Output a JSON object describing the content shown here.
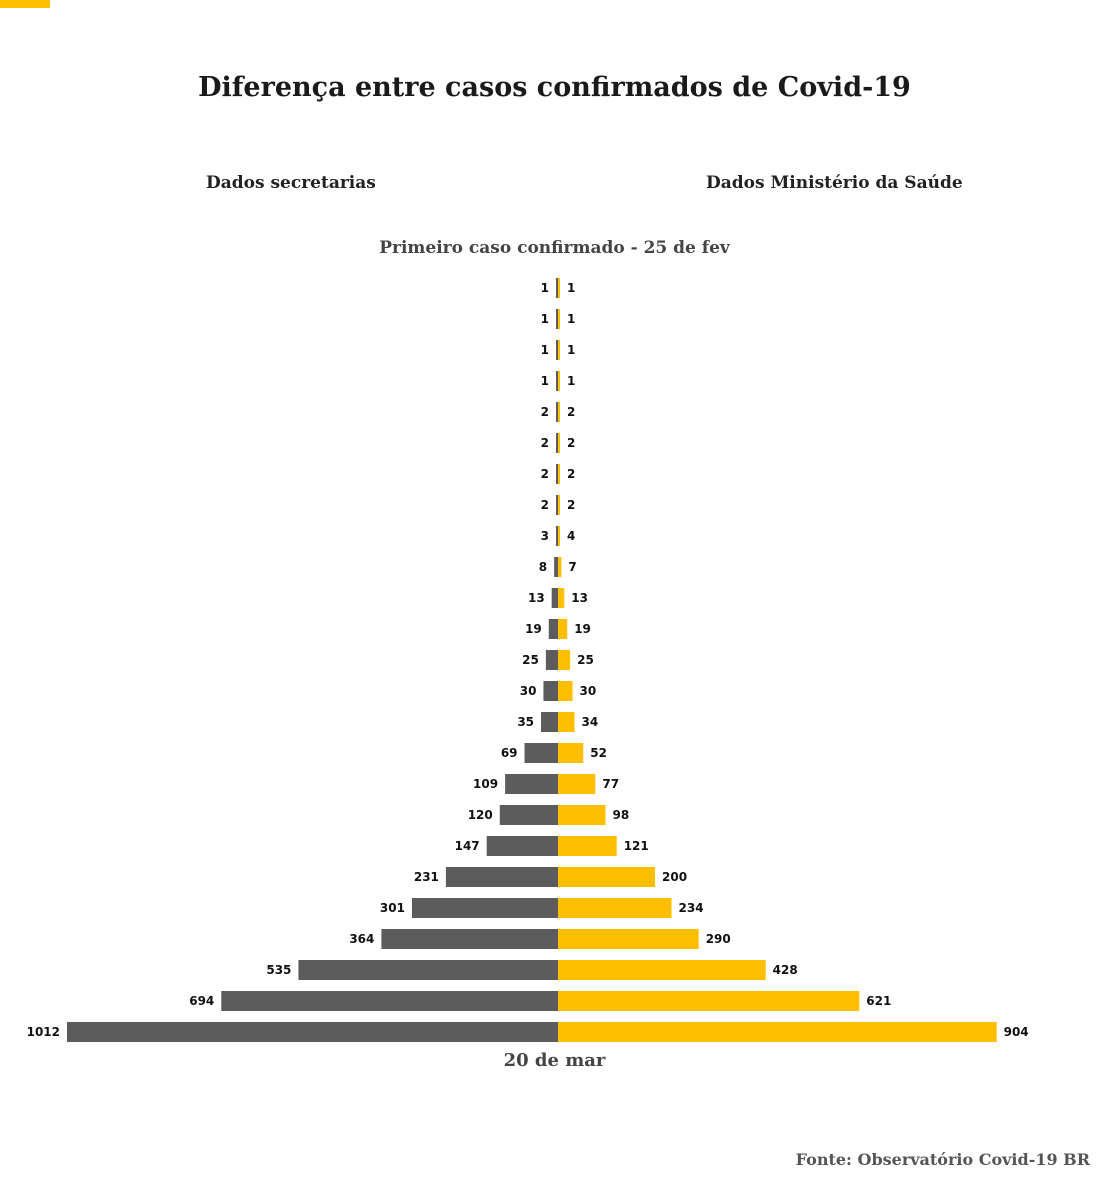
{
  "title": "Diferença entre casos confirmados de Covid-19",
  "source": "Fonte: Observatório Covid-19 BR",
  "colors": {
    "left": "#5c5c5c",
    "right": "#ffbf00",
    "accent": "#ffbf00"
  },
  "chart_data": {
    "type": "bar",
    "orientation": "horizontal-butterfly",
    "left_label": "Dados secretarias",
    "right_label": "Dados Ministério da Saúde",
    "top_label": "Primeiro caso confirmado - 25 de fev",
    "bottom_label": "20 de mar",
    "series": [
      {
        "name": "Dados secretarias",
        "values": [
          1,
          1,
          1,
          1,
          2,
          2,
          2,
          2,
          3,
          8,
          13,
          19,
          25,
          30,
          35,
          69,
          109,
          120,
          147,
          231,
          301,
          364,
          535,
          694,
          1012
        ]
      },
      {
        "name": "Dados Ministério da Saúde",
        "values": [
          1,
          1,
          1,
          1,
          2,
          2,
          2,
          2,
          4,
          7,
          13,
          19,
          25,
          30,
          34,
          52,
          77,
          98,
          121,
          200,
          234,
          290,
          428,
          621,
          904
        ]
      }
    ]
  }
}
